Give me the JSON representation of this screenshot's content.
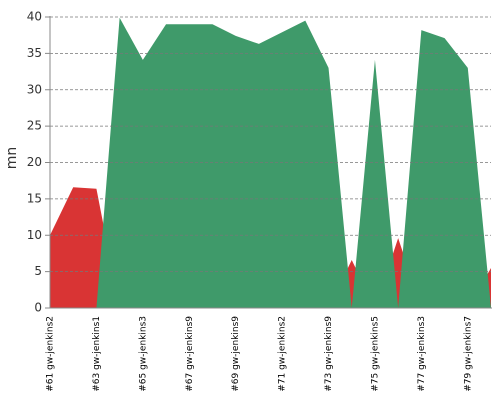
{
  "chart_data": {
    "type": "area",
    "y_label": "mn",
    "categories": [
      "#61 gw-jenkins2",
      null,
      "#63 gw-jenkins1",
      null,
      "#65 gw-jenkins3",
      null,
      "#67 gw-jenkins9",
      null,
      "#69 gw-jenkins9",
      null,
      "#71 gw-jenkins2",
      null,
      "#73 gw-jenkins9",
      null,
      "#75 gw-jenkins5",
      null,
      "#77 gw-jenkins3",
      null,
      "#79 gw-jenkins7",
      null
    ],
    "series": [
      {
        "color": "#d93434",
        "values": [
          10.0,
          16.6,
          16.4,
          0,
          0,
          0,
          0,
          0,
          0,
          0,
          0,
          0,
          0,
          6.6,
          0,
          9.6,
          0,
          0,
          0,
          5.5
        ]
      },
      {
        "color": "#3f9a6a",
        "values": [
          0,
          0,
          0,
          39.9,
          34.1,
          39.0,
          39.0,
          39.0,
          37.4,
          36.3,
          37.9,
          39.5,
          33.0,
          0,
          34.1,
          0,
          38.2,
          37.1,
          33.0,
          0
        ]
      }
    ],
    "ylim": [
      0,
      40
    ],
    "yticks": [
      0,
      5,
      10,
      15,
      20,
      25,
      30,
      35,
      40
    ],
    "grid": true
  }
}
